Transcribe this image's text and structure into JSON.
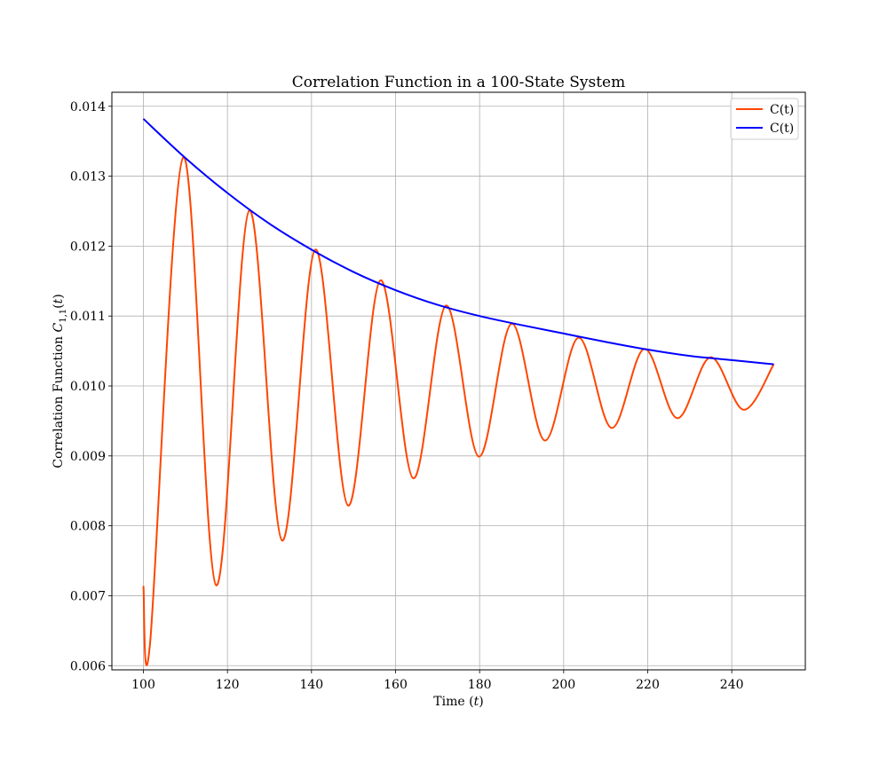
{
  "chart_data": {
    "type": "line",
    "title": "Correlation Function in a 100-State System",
    "xlabel_prefix": "Time (",
    "xlabel_var": "t",
    "xlabel_suffix": ")",
    "ylabel_prefix": "Correlation Function ",
    "ylabel_var": "C",
    "ylabel_sub": "1,1",
    "ylabel_suffix_open": "(",
    "ylabel_suffix_var": "t",
    "ylabel_suffix_close": ")",
    "xlim": [
      92.5,
      257.5
    ],
    "ylim": [
      0.00594,
      0.0142
    ],
    "x_ticks": [
      100,
      120,
      140,
      160,
      180,
      200,
      220,
      240
    ],
    "x_tick_labels": [
      "100",
      "120",
      "140",
      "160",
      "180",
      "200",
      "220",
      "240"
    ],
    "y_ticks": [
      0.006,
      0.007,
      0.008,
      0.009,
      0.01,
      0.011,
      0.012,
      0.013,
      0.014
    ],
    "y_tick_labels": [
      "0.006",
      "0.007",
      "0.008",
      "0.009",
      "0.010",
      "0.011",
      "0.012",
      "0.013",
      "0.014"
    ],
    "grid": true,
    "legend_position": "top-right",
    "series": [
      {
        "name": "C(t)",
        "color": "#ff4500",
        "x": [
          100.0,
          101.6,
          109.5,
          117.3,
          125.2,
          133.0,
          140.9,
          148.7,
          156.4,
          164.2,
          172.0,
          179.8,
          187.6,
          195.5,
          203.5,
          211.4,
          219.2,
          227.0,
          234.9,
          242.8,
          250.0
        ],
        "y": [
          0.00714,
          0.00633,
          0.01327,
          0.00715,
          0.01251,
          0.00779,
          0.01195,
          0.00829,
          0.01151,
          0.00868,
          0.01115,
          0.00899,
          0.01089,
          0.00922,
          0.01069,
          0.0094,
          0.01053,
          0.00954,
          0.01041,
          0.00966,
          0.01031
        ]
      },
      {
        "name": "C(t)",
        "color": "#0000ff",
        "x": [
          100,
          110,
          120,
          130,
          140,
          150,
          160,
          170,
          180,
          190,
          200,
          210,
          220,
          230,
          240,
          250
        ],
        "y": [
          0.01382,
          0.01326,
          0.01276,
          0.01232,
          0.01195,
          0.01163,
          0.01137,
          0.01116,
          0.011,
          0.01087,
          0.01075,
          0.01063,
          0.01052,
          0.01043,
          0.01037,
          0.01031
        ]
      }
    ]
  }
}
